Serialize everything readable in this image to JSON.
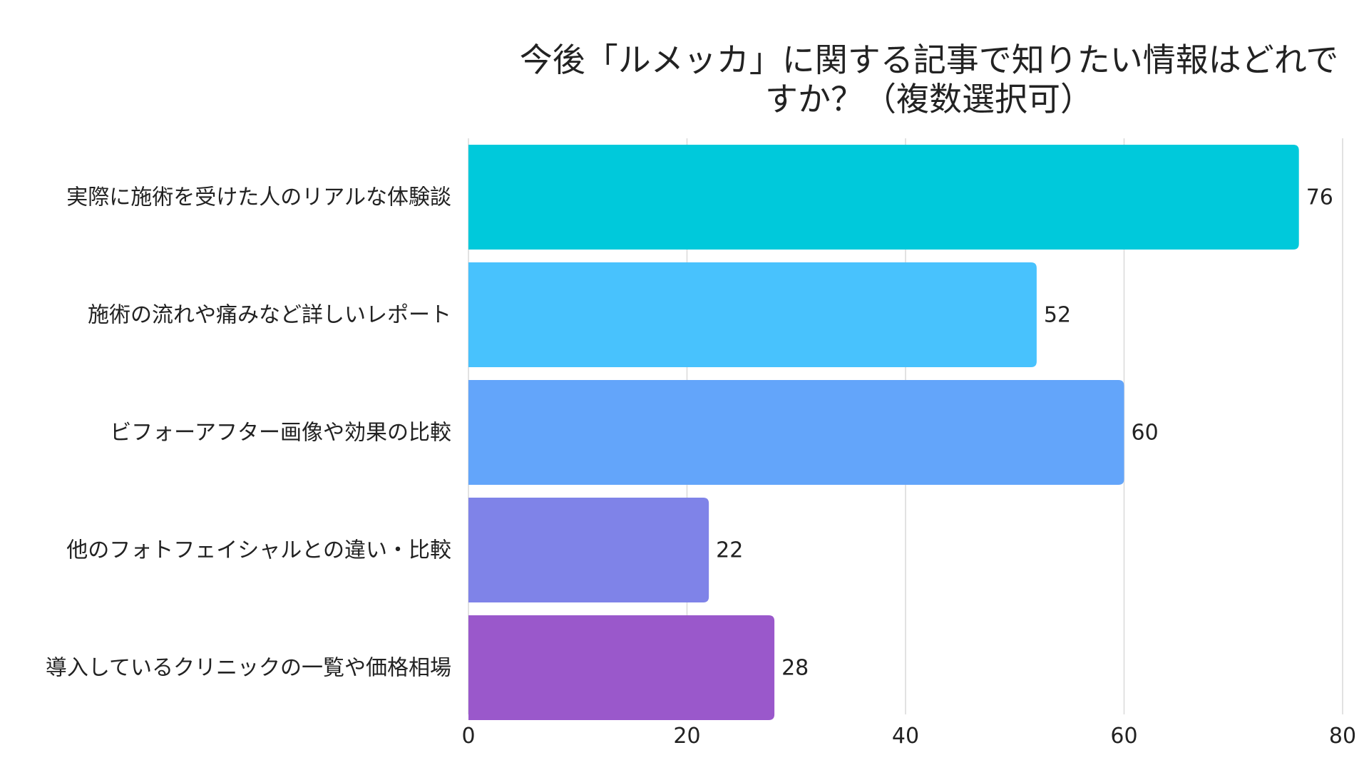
{
  "chart_data": {
    "type": "bar",
    "orientation": "horizontal",
    "title_lines": [
      "今後「ルメッカ」に関する記事で知りたい情報はどれで",
      "すか？（複数選択可）"
    ],
    "categories": [
      "実際に施術を受けた人のリアルな体験談",
      "施術の流れや痛みなど詳しいレポート",
      "ビフォーアフター画像や効果の比較",
      "他のフォトフェイシャルとの違い・比較",
      "導入しているクリニックの一覧や価格相場"
    ],
    "values": [
      76,
      52,
      60,
      22,
      28
    ],
    "colors": [
      "#00c9db",
      "#48c2fd",
      "#63a5fa",
      "#7f83e8",
      "#9a58cb"
    ],
    "xlim": [
      0,
      80
    ],
    "ticks": [
      "0",
      "20",
      "40",
      "60",
      "80"
    ],
    "grid": true
  }
}
